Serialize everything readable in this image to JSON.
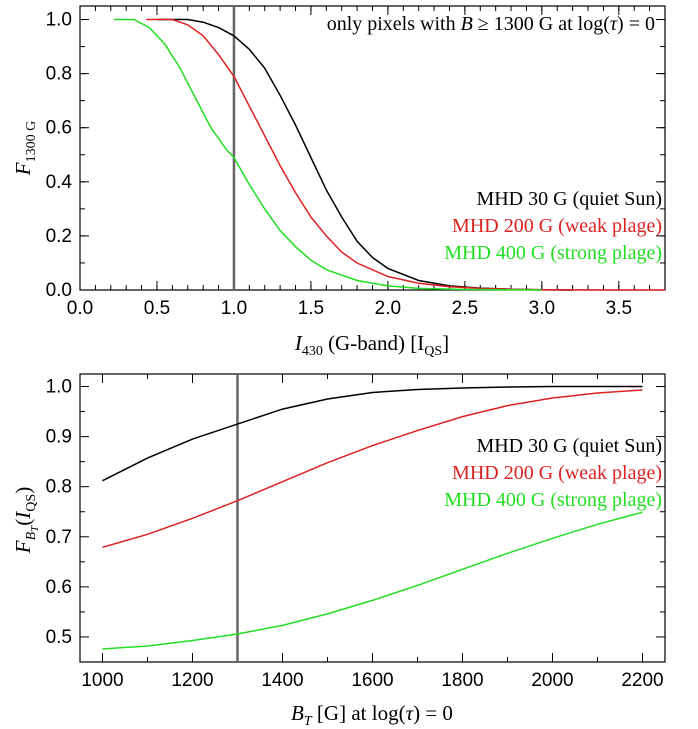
{
  "chart_data": [
    {
      "type": "line",
      "id": "top",
      "title": "",
      "annotation_pre": "only pixels with ",
      "annotation_math": "B ≥ 1300 G at log(τ) = 0",
      "xlabel": "I₄₃₀ (G-band) [I_QS]",
      "ylabel": "F₁₃₀₀ G",
      "xlim": [
        0.0,
        3.8
      ],
      "ylim": [
        0.0,
        1.05
      ],
      "xticks": [
        "0.0",
        "0.5",
        "1.0",
        "1.5",
        "2.0",
        "2.5",
        "3.0",
        "3.5"
      ],
      "yticks": [
        "0.0",
        "0.2",
        "0.4",
        "0.6",
        "0.8",
        "1.0"
      ],
      "vline_x": 1.0,
      "series": [
        {
          "name": "MHD  30 G (quiet Sun)",
          "color": "#000000",
          "x": [
            0.5,
            0.7,
            0.8,
            0.9,
            1.0,
            1.1,
            1.2,
            1.3,
            1.4,
            1.5,
            1.6,
            1.7,
            1.8,
            1.9,
            2.0,
            2.2,
            2.4,
            2.6,
            2.8,
            3.0,
            3.2
          ],
          "y": [
            1.0,
            1.0,
            0.99,
            0.97,
            0.94,
            0.89,
            0.82,
            0.72,
            0.61,
            0.49,
            0.37,
            0.27,
            0.18,
            0.12,
            0.08,
            0.035,
            0.015,
            0.007,
            0.003,
            0.001,
            0.0
          ]
        },
        {
          "name": "MHD 200 G (weak plage)",
          "color": "#dd2222",
          "x": [
            0.43,
            0.6,
            0.7,
            0.8,
            0.9,
            1.0,
            1.1,
            1.2,
            1.3,
            1.4,
            1.5,
            1.6,
            1.7,
            1.8,
            2.0,
            2.2,
            2.4,
            2.6,
            2.8,
            3.0,
            3.5,
            3.8
          ],
          "y": [
            1.0,
            1.0,
            0.98,
            0.94,
            0.87,
            0.79,
            0.68,
            0.57,
            0.46,
            0.36,
            0.27,
            0.2,
            0.14,
            0.1,
            0.05,
            0.025,
            0.012,
            0.006,
            0.003,
            0.001,
            0.0,
            0.0
          ]
        },
        {
          "name": "MHD 400 G (strong plage)",
          "color": "#22dd22",
          "x": [
            0.22,
            0.35,
            0.45,
            0.55,
            0.65,
            0.75,
            0.85,
            0.95,
            1.0,
            1.1,
            1.2,
            1.3,
            1.4,
            1.5,
            1.6,
            1.8,
            2.0,
            2.2,
            2.5,
            3.0
          ],
          "y": [
            1.0,
            1.0,
            0.97,
            0.91,
            0.82,
            0.71,
            0.6,
            0.52,
            0.49,
            0.39,
            0.3,
            0.22,
            0.16,
            0.11,
            0.075,
            0.035,
            0.015,
            0.006,
            0.002,
            0.0
          ]
        }
      ]
    },
    {
      "type": "line",
      "id": "bottom",
      "title": "",
      "xlabel": "B_T [G] at log(τ) = 0",
      "ylabel": "F_B_T (I_QS)",
      "xlim": [
        950,
        2250
      ],
      "ylim": [
        0.45,
        1.025
      ],
      "xticks": [
        "1000",
        "1200",
        "1400",
        "1600",
        "1800",
        "2000",
        "2200"
      ],
      "yticks": [
        "0.5",
        "0.6",
        "0.7",
        "0.8",
        "0.9",
        "1.0"
      ],
      "vline_x": 1300,
      "series": [
        {
          "name": "MHD  30 G (quiet Sun)",
          "color": "#000000",
          "x": [
            1000,
            1100,
            1200,
            1300,
            1400,
            1500,
            1600,
            1700,
            1800,
            1900,
            2000,
            2100,
            2200
          ],
          "y": [
            0.812,
            0.857,
            0.895,
            0.925,
            0.955,
            0.975,
            0.988,
            0.994,
            0.997,
            0.999,
            1.0,
            1.0,
            1.0
          ]
        },
        {
          "name": "MHD 200 G (weak plage)",
          "color": "#dd2222",
          "x": [
            1000,
            1100,
            1200,
            1300,
            1400,
            1500,
            1600,
            1700,
            1800,
            1900,
            2000,
            2100,
            2200
          ],
          "y": [
            0.679,
            0.705,
            0.737,
            0.772,
            0.81,
            0.848,
            0.882,
            0.912,
            0.94,
            0.962,
            0.977,
            0.987,
            0.993
          ]
        },
        {
          "name": "MHD 400 G (strong plage)",
          "color": "#22dd22",
          "x": [
            1000,
            1100,
            1200,
            1300,
            1400,
            1500,
            1600,
            1700,
            1800,
            1900,
            2000,
            2100,
            2200
          ],
          "y": [
            0.476,
            0.482,
            0.493,
            0.506,
            0.523,
            0.546,
            0.573,
            0.603,
            0.635,
            0.667,
            0.697,
            0.725,
            0.749
          ]
        }
      ]
    }
  ]
}
